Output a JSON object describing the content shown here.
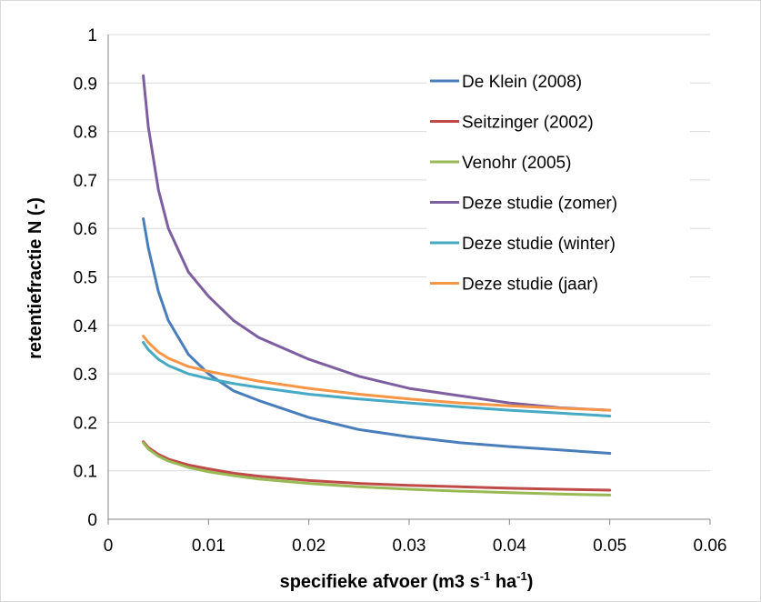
{
  "chart_data": {
    "type": "line",
    "title": "",
    "xlabel": "specifieke afvoer (m3 s",
    "xlabel_sup1": "-1",
    "xlabel_mid": " ha",
    "xlabel_sup2": "-1",
    "xlabel_end": ")",
    "ylabel": "retentiefractie N (-)",
    "xlim": [
      0,
      0.06
    ],
    "ylim": [
      0,
      1
    ],
    "xticks": [
      "0",
      "0.01",
      "0.02",
      "0.03",
      "0.04",
      "0.05",
      "0.06"
    ],
    "yticks": [
      "0",
      "0.1",
      "0.2",
      "0.3",
      "0.4",
      "0.5",
      "0.6",
      "0.7",
      "0.8",
      "0.9",
      "1"
    ],
    "grid": "horizontal",
    "legend_position": "top-right",
    "x": [
      0.0035,
      0.004,
      0.005,
      0.006,
      0.008,
      0.01,
      0.0125,
      0.015,
      0.02,
      0.025,
      0.03,
      0.035,
      0.04,
      0.045,
      0.05
    ],
    "series": [
      {
        "name": "De Klein (2008)",
        "color": "#4a7ebb",
        "values": [
          0.62,
          0.56,
          0.47,
          0.41,
          0.34,
          0.3,
          0.265,
          0.245,
          0.21,
          0.185,
          0.17,
          0.158,
          0.15,
          0.143,
          0.136
        ]
      },
      {
        "name": "Seitzinger (2002)",
        "color": "#be4b48",
        "values": [
          0.16,
          0.148,
          0.134,
          0.124,
          0.112,
          0.104,
          0.095,
          0.089,
          0.08,
          0.074,
          0.07,
          0.067,
          0.064,
          0.062,
          0.06
        ]
      },
      {
        "name": "Venohr (2005)",
        "color": "#98b954",
        "values": [
          0.158,
          0.145,
          0.13,
          0.12,
          0.107,
          0.098,
          0.09,
          0.083,
          0.074,
          0.067,
          0.062,
          0.058,
          0.055,
          0.052,
          0.05
        ]
      },
      {
        "name": "Deze studie (zomer)",
        "color": "#7d5fa0",
        "values": [
          0.915,
          0.81,
          0.68,
          0.6,
          0.51,
          0.46,
          0.41,
          0.375,
          0.33,
          0.295,
          0.27,
          0.255,
          0.24,
          0.23,
          0.225
        ]
      },
      {
        "name": "Deze studie (winter)",
        "color": "#46aac5",
        "values": [
          0.365,
          0.35,
          0.33,
          0.317,
          0.3,
          0.29,
          0.28,
          0.272,
          0.258,
          0.248,
          0.24,
          0.232,
          0.225,
          0.219,
          0.213
        ]
      },
      {
        "name": "Deze studie (jaar)",
        "color": "#f79646",
        "values": [
          0.378,
          0.365,
          0.345,
          0.332,
          0.315,
          0.305,
          0.295,
          0.285,
          0.27,
          0.258,
          0.248,
          0.24,
          0.234,
          0.229,
          0.225
        ]
      }
    ]
  }
}
